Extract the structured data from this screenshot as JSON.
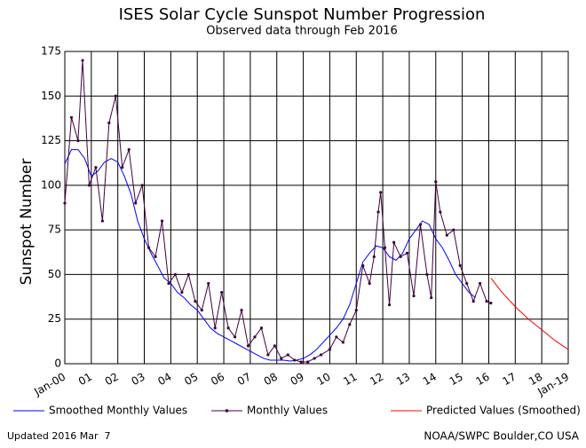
{
  "chart_data": {
    "type": "line",
    "title": "ISES Solar Cycle Sunspot Number Progression",
    "subtitle": "Observed data through Feb 2016",
    "y_label": "Sunspot Number",
    "xlim": [
      0,
      19
    ],
    "xticks": [
      {
        "value": 0,
        "label": "Jan-00"
      },
      {
        "value": 1,
        "label": "01"
      },
      {
        "value": 2,
        "label": "02"
      },
      {
        "value": 3,
        "label": "03"
      },
      {
        "value": 4,
        "label": "04"
      },
      {
        "value": 5,
        "label": "05"
      },
      {
        "value": 6,
        "label": "06"
      },
      {
        "value": 7,
        "label": "07"
      },
      {
        "value": 8,
        "label": "08"
      },
      {
        "value": 9,
        "label": "09"
      },
      10,
      11,
      12,
      13,
      14,
      15,
      16,
      17,
      18,
      {
        "value": 19,
        "label": "Jan-19"
      }
    ],
    "ylim": [
      0,
      175
    ],
    "yticks": [
      0,
      25,
      50,
      75,
      100,
      125,
      150,
      175
    ],
    "grid": true,
    "series": [
      {
        "name": "Smoothed Monthly Values",
        "color": "#0000ff",
        "style": "line",
        "x": [
          0,
          0.25,
          0.5,
          0.75,
          1,
          1.25,
          1.5,
          1.75,
          2,
          2.25,
          2.5,
          2.75,
          3,
          3.25,
          3.5,
          3.75,
          4,
          4.25,
          4.5,
          4.75,
          5,
          5.25,
          5.5,
          5.75,
          6,
          6.25,
          6.5,
          6.75,
          7,
          7.25,
          7.5,
          7.75,
          8,
          8.25,
          8.5,
          8.75,
          9,
          9.25,
          9.5,
          9.75,
          10,
          10.25,
          10.5,
          10.75,
          11,
          11.25,
          11.5,
          11.75,
          12,
          12.25,
          12.5,
          12.75,
          13,
          13.25,
          13.5,
          13.75,
          14,
          14.25,
          14.5,
          14.75,
          15,
          15.25,
          15.5
        ],
        "values": [
          112,
          120,
          120,
          115,
          105,
          108,
          113,
          115,
          113,
          105,
          95,
          80,
          70,
          62,
          55,
          48,
          45,
          40,
          37,
          33,
          30,
          25,
          20,
          17,
          15,
          13,
          11,
          9,
          7,
          5,
          3,
          2,
          2,
          2,
          1.5,
          2,
          3,
          5,
          8,
          12,
          16,
          20,
          25,
          33,
          45,
          57,
          62,
          66,
          65,
          60,
          58,
          62,
          70,
          75,
          80,
          78,
          70,
          65,
          58,
          50,
          45,
          40,
          37
        ]
      },
      {
        "name": "Monthly Values",
        "color": "#400040",
        "style": "dots",
        "x": [
          0,
          0.25,
          0.5,
          0.67,
          0.92,
          1.17,
          1.42,
          1.67,
          1.92,
          2.17,
          2.42,
          2.67,
          2.92,
          3.17,
          3.42,
          3.67,
          3.92,
          4.17,
          4.42,
          4.67,
          4.92,
          5.17,
          5.42,
          5.67,
          5.92,
          6.17,
          6.42,
          6.67,
          6.92,
          7.17,
          7.42,
          7.67,
          7.92,
          8.17,
          8.42,
          8.67,
          8.92,
          9.17,
          9.42,
          9.67,
          10,
          10.25,
          10.5,
          10.75,
          11,
          11.25,
          11.5,
          11.67,
          11.83,
          11.92,
          12.08,
          12.25,
          12.42,
          12.67,
          12.92,
          13.17,
          13.42,
          13.67,
          13.83,
          14,
          14.17,
          14.42,
          14.67,
          14.92,
          15.17,
          15.42,
          15.67,
          15.92,
          16.08
        ],
        "values": [
          90,
          138,
          125,
          170,
          100,
          110,
          80,
          135,
          150,
          110,
          120,
          90,
          100,
          65,
          60,
          80,
          45,
          50,
          40,
          50,
          35,
          30,
          45,
          20,
          40,
          20,
          15,
          30,
          10,
          15,
          20,
          5,
          10,
          3,
          5,
          2,
          1,
          1,
          3,
          5,
          8,
          15,
          12,
          22,
          30,
          55,
          45,
          60,
          85,
          96,
          65,
          33,
          68,
          60,
          62,
          38,
          78,
          50,
          37,
          102,
          85,
          72,
          75,
          55,
          45,
          35,
          45,
          35,
          34
        ]
      },
      {
        "name": "Predicted Values (Smoothed)",
        "color": "#ff0000",
        "style": "line",
        "x": [
          16.08,
          16.5,
          17,
          17.5,
          18,
          18.5,
          19
        ],
        "values": [
          48,
          40,
          32,
          25,
          19,
          13,
          8
        ]
      }
    ],
    "annotations": [
      "Updated 2016 Mar  7",
      "NOAA/SWPC Boulder,CO USA"
    ]
  }
}
